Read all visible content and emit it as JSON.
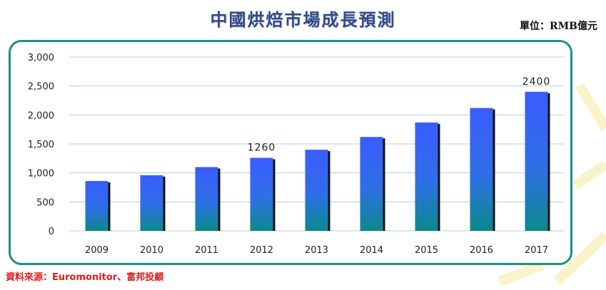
{
  "header": {
    "title": "中國烘焙市場成長預測",
    "unit": "單位：RMB億元"
  },
  "footer": {
    "source": "資料來源：Euromonitor、富邦投顧"
  },
  "colors": {
    "bar_top": "#3a5cff",
    "bar_bottom": "#0a8a8a",
    "bar_shadow": "#111111",
    "frame": "#1f8f86",
    "grid": "#b7d0d6"
  },
  "chart_data": {
    "type": "bar",
    "title": "中國烘焙市場成長預測",
    "categories": [
      "2009",
      "2010",
      "2011",
      "2012",
      "2013",
      "2014",
      "2015",
      "2016",
      "2017"
    ],
    "values": [
      860,
      960,
      1100,
      1260,
      1400,
      1620,
      1870,
      2120,
      2400
    ],
    "ylim": [
      0,
      3000
    ],
    "yticks": [
      0,
      500,
      1000,
      1500,
      2000,
      2500,
      3000
    ],
    "ytick_labels": [
      "0",
      "500",
      "1,000",
      "1,500",
      "2,000",
      "2,500",
      "3,000"
    ],
    "data_labels": [
      {
        "category": "2012",
        "text": "1260"
      },
      {
        "category": "2017",
        "text": "2400"
      }
    ],
    "grid": true,
    "legend": "none"
  }
}
